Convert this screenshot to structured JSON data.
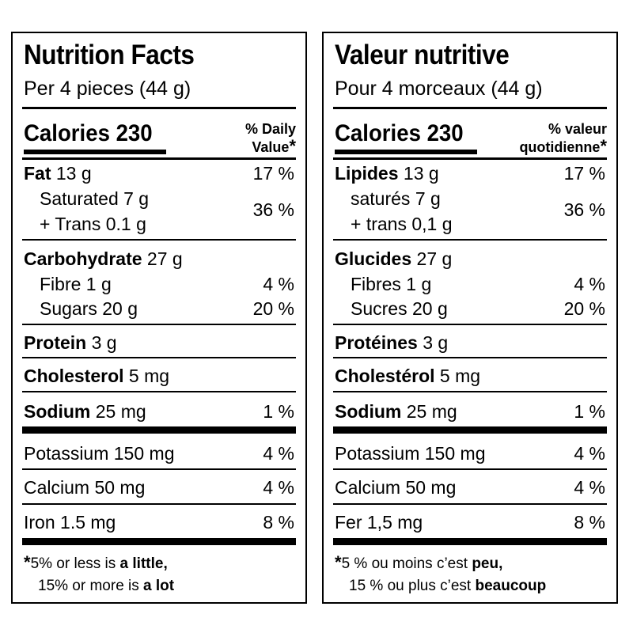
{
  "english": {
    "title": "Nutrition Facts",
    "serving": "Per 4 pieces (44 g)",
    "calories_label": "Calories 230",
    "dv_header_line1": "% Daily",
    "dv_header_line2": "Value",
    "dv_star": "*",
    "fat_label": "Fat",
    "fat_amount": " 13 g",
    "fat_pct": "17 %",
    "saturated": "Saturated 7 g",
    "trans": "+ Trans 0.1 g",
    "sat_trans_pct": "36 %",
    "carb_label": "Carbohydrate",
    "carb_amount": " 27 g",
    "fibre": "Fibre 1 g",
    "fibre_pct": "4 %",
    "sugars": "Sugars 20 g",
    "sugars_pct": "20 %",
    "protein_label": "Protein",
    "protein_amount": " 3 g",
    "chol_label": "Cholesterol",
    "chol_amount": " 5 mg",
    "sodium_label": "Sodium",
    "sodium_amount": " 25 mg",
    "sodium_pct": "1 %",
    "potassium": "Potassium 150 mg",
    "potassium_pct": "4 %",
    "calcium": "Calcium 50 mg",
    "calcium_pct": "4 %",
    "iron": "Iron 1.5 mg",
    "iron_pct": "8 %",
    "foot_star": "*",
    "foot1_a": "5% or less is ",
    "foot1_b": "a little,",
    "foot2_a": "15% or more is ",
    "foot2_b": "a lot"
  },
  "french": {
    "title": "Valeur nutritive",
    "serving": "Pour 4 morceaux (44 g)",
    "calories_label": "Calories 230",
    "dv_header_line1": "% valeur",
    "dv_header_line2": "quotidienne",
    "dv_star": "*",
    "fat_label": "Lipides",
    "fat_amount": " 13 g",
    "fat_pct": "17 %",
    "saturated": "saturés 7 g",
    "trans": "+ trans 0,1 g",
    "sat_trans_pct": "36 %",
    "carb_label": "Glucides",
    "carb_amount": " 27 g",
    "fibre": "Fibres 1 g",
    "fibre_pct": "4 %",
    "sugars": "Sucres 20 g",
    "sugars_pct": "20 %",
    "protein_label": "Protéines",
    "protein_amount": " 3 g",
    "chol_label": "Cholestérol",
    "chol_amount": " 5 mg",
    "sodium_label": "Sodium",
    "sodium_amount": " 25 mg",
    "sodium_pct": "1 %",
    "potassium": "Potassium 150 mg",
    "potassium_pct": "4 %",
    "calcium": "Calcium 50 mg",
    "calcium_pct": "4 %",
    "iron": "Fer 1,5 mg",
    "iron_pct": "8 %",
    "foot_star": "*",
    "foot1_a": "5 % ou moins c’est ",
    "foot1_b": "peu,",
    "foot2_a": "15 % ou plus c’est ",
    "foot2_b": "beaucoup"
  }
}
